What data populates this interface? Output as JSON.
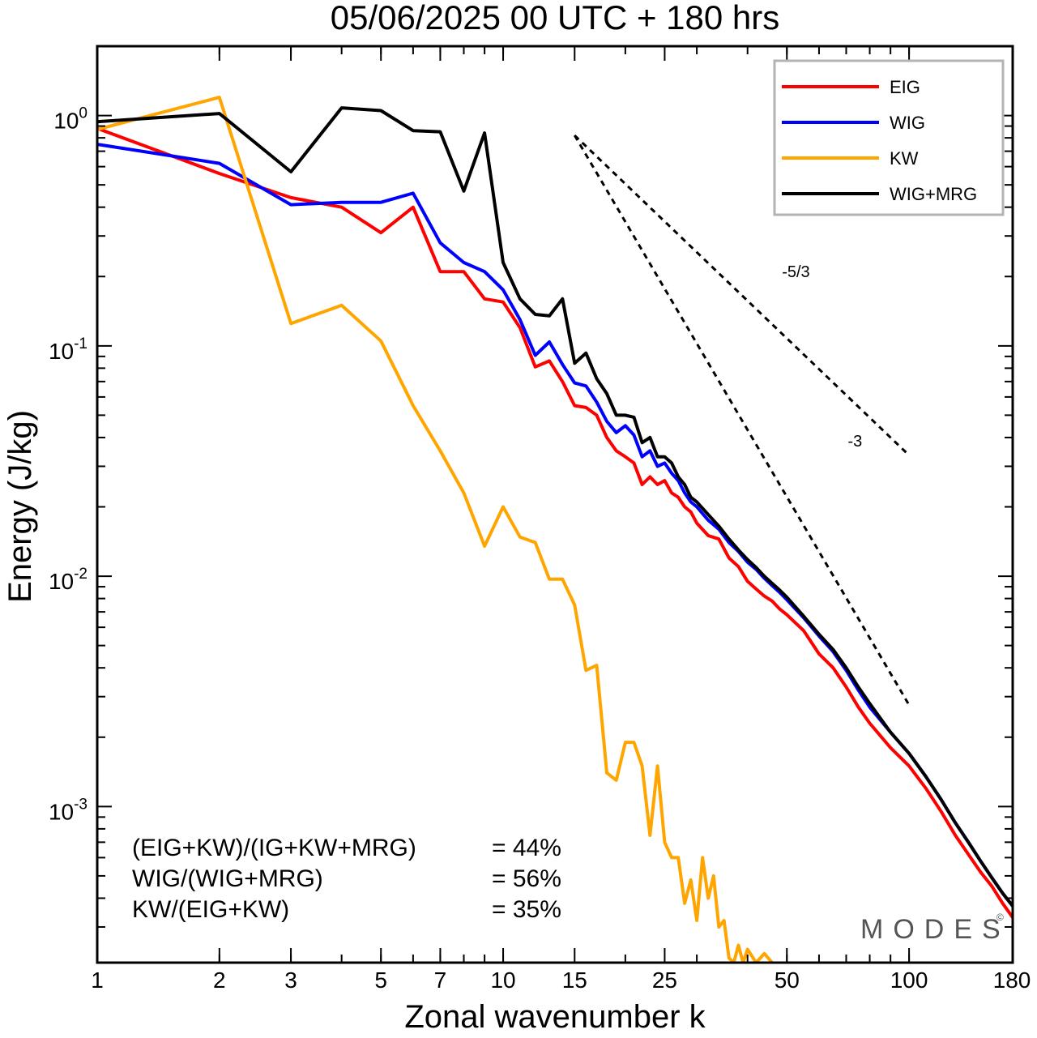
{
  "chart_data": {
    "type": "line",
    "title": "05/06/2025  00 UTC  + 180 hrs",
    "xlabel": "Zonal wavenumber k",
    "ylabel": "Energy (J/kg)",
    "xscale": "log",
    "yscale": "log",
    "xlim": [
      1,
      180
    ],
    "ylim": [
      0.00021,
      2.0
    ],
    "xticks": [
      1,
      2,
      3,
      5,
      7,
      10,
      15,
      25,
      50,
      100,
      180
    ],
    "yticks": [
      {
        "value": 1,
        "base": "10",
        "exp": "0"
      },
      {
        "value": 0.1,
        "base": "10",
        "exp": "-1"
      },
      {
        "value": 0.01,
        "base": "10",
        "exp": "-2"
      },
      {
        "value": 0.001,
        "base": "10",
        "exp": "-3"
      }
    ],
    "grid": false,
    "legend_position": "top-right",
    "series": [
      {
        "name": "EIG",
        "color": "#ff0000",
        "x": [
          1,
          2,
          3,
          4,
          5,
          6,
          7,
          8,
          9,
          10,
          11,
          12,
          13,
          14,
          15,
          16,
          17,
          18,
          19,
          20,
          21,
          22,
          23,
          24,
          25,
          26,
          27,
          28,
          29,
          30,
          32,
          34,
          36,
          38,
          40,
          42,
          44,
          46,
          48,
          50,
          55,
          60,
          65,
          70,
          75,
          80,
          90,
          100,
          110,
          120,
          130,
          140,
          150,
          160,
          170,
          180
        ],
        "values": [
          0.88,
          0.56,
          0.44,
          0.4,
          0.31,
          0.4,
          0.21,
          0.21,
          0.16,
          0.155,
          0.12,
          0.081,
          0.086,
          0.07,
          0.055,
          0.054,
          0.05,
          0.04,
          0.035,
          0.033,
          0.031,
          0.025,
          0.027,
          0.025,
          0.026,
          0.023,
          0.022,
          0.02,
          0.019,
          0.017,
          0.015,
          0.0145,
          0.012,
          0.011,
          0.0095,
          0.0088,
          0.0082,
          0.0078,
          0.0072,
          0.0068,
          0.0058,
          0.0046,
          0.004,
          0.0033,
          0.0027,
          0.0023,
          0.0018,
          0.0015,
          0.0012,
          0.00095,
          0.00075,
          0.00062,
          0.00052,
          0.00045,
          0.00038,
          0.00033
        ]
      },
      {
        "name": "WIG",
        "color": "#0000ff",
        "x": [
          1,
          2,
          3,
          4,
          5,
          6,
          7,
          8,
          9,
          10,
          11,
          12,
          13,
          14,
          15,
          16,
          17,
          18,
          19,
          20,
          21,
          22,
          23,
          24,
          25,
          26,
          27,
          28,
          29,
          30,
          32,
          34,
          36,
          38,
          40,
          42,
          44,
          46,
          48,
          50,
          55,
          60,
          65,
          70,
          75,
          80,
          90,
          100,
          110,
          120,
          130,
          140,
          150,
          160,
          170,
          180
        ],
        "values": [
          0.75,
          0.62,
          0.41,
          0.42,
          0.42,
          0.46,
          0.28,
          0.23,
          0.21,
          0.175,
          0.13,
          0.091,
          0.104,
          0.083,
          0.069,
          0.067,
          0.057,
          0.047,
          0.042,
          0.045,
          0.041,
          0.033,
          0.035,
          0.03,
          0.031,
          0.028,
          0.026,
          0.023,
          0.021,
          0.02,
          0.0175,
          0.016,
          0.014,
          0.0128,
          0.0115,
          0.0107,
          0.0098,
          0.0091,
          0.0085,
          0.0079,
          0.0066,
          0.0055,
          0.0047,
          0.0039,
          0.0032,
          0.0027,
          0.0021,
          0.0017,
          0.00135,
          0.00107,
          0.00085,
          0.0007,
          0.00058,
          0.00049,
          0.00042,
          0.00037
        ]
      },
      {
        "name": "KW",
        "color": "#ffa500",
        "x": [
          1,
          2,
          3,
          4,
          5,
          6,
          7,
          8,
          9,
          10,
          11,
          12,
          13,
          14,
          15,
          16,
          17,
          18,
          19,
          20,
          21,
          22,
          23,
          24,
          25,
          26,
          27,
          28,
          29,
          30,
          31,
          32,
          33,
          34,
          35,
          36,
          37,
          38,
          39,
          40,
          42,
          44,
          46
        ],
        "values": [
          0.87,
          1.2,
          0.125,
          0.15,
          0.105,
          0.055,
          0.035,
          0.023,
          0.0135,
          0.02,
          0.0148,
          0.014,
          0.0097,
          0.0097,
          0.0075,
          0.0039,
          0.0041,
          0.0014,
          0.0013,
          0.0019,
          0.0019,
          0.0015,
          0.00075,
          0.0015,
          0.0007,
          0.0006,
          0.0006,
          0.00038,
          0.00048,
          0.00032,
          0.0006,
          0.0004,
          0.0005,
          0.0003,
          0.00032,
          0.00022,
          0.00021,
          0.00025,
          0.00021,
          0.00024,
          0.00021,
          0.00023,
          0.00021
        ]
      },
      {
        "name": "WIG+MRG",
        "color": "#000000",
        "x": [
          1,
          2,
          3,
          4,
          5,
          6,
          7,
          8,
          9,
          10,
          11,
          12,
          13,
          14,
          15,
          16,
          17,
          18,
          19,
          20,
          21,
          22,
          23,
          24,
          25,
          26,
          27,
          28,
          29,
          30,
          32,
          34,
          36,
          38,
          40,
          42,
          44,
          46,
          48,
          50,
          55,
          60,
          65,
          70,
          75,
          80,
          90,
          100,
          110,
          120,
          130,
          140,
          150,
          160,
          170,
          180
        ],
        "values": [
          0.94,
          1.02,
          0.57,
          1.08,
          1.05,
          0.86,
          0.85,
          0.47,
          0.84,
          0.23,
          0.16,
          0.137,
          0.135,
          0.16,
          0.084,
          0.093,
          0.072,
          0.062,
          0.05,
          0.05,
          0.049,
          0.038,
          0.04,
          0.033,
          0.033,
          0.031,
          0.027,
          0.025,
          0.022,
          0.021,
          0.0185,
          0.0165,
          0.0145,
          0.013,
          0.0118,
          0.0109,
          0.01,
          0.0093,
          0.0087,
          0.0081,
          0.0067,
          0.0056,
          0.0048,
          0.004,
          0.0033,
          0.0028,
          0.0021,
          0.0017,
          0.00135,
          0.00107,
          0.00085,
          0.0007,
          0.00058,
          0.00049,
          0.00042,
          0.00037
        ]
      }
    ],
    "reference_lines": [
      {
        "label": "-5/3",
        "slope": -1.6667,
        "x": [
          15,
          100
        ],
        "y": [
          0.82,
          0.0335
        ]
      },
      {
        "label": "-3",
        "slope": -3,
        "x": [
          15,
          100
        ],
        "y": [
          0.82,
          0.00276
        ]
      }
    ],
    "annotations": [
      {
        "label": "(EIG+KW)/(IG+KW+MRG)",
        "value": "= 44%"
      },
      {
        "label": "WIG/(WIG+MRG)",
        "value": "= 56%"
      },
      {
        "label": "KW/(EIG+KW)",
        "value": "= 35%"
      }
    ],
    "brand": {
      "text": "MODES",
      "mark": "©"
    }
  }
}
